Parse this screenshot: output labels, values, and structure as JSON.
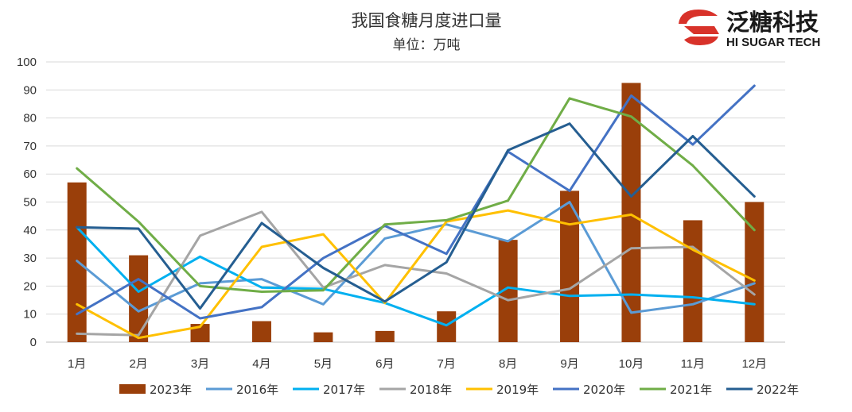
{
  "logo": {
    "name_cn": "泛糖科技",
    "name_en": "HI SUGAR TECH",
    "color_red": "#d8322a"
  },
  "chart_data": {
    "type": "bar+line",
    "title": "我国食糖月度进口量",
    "subtitle": "单位：万吨",
    "categories": [
      "1月",
      "2月",
      "3月",
      "4月",
      "5月",
      "6月",
      "7月",
      "8月",
      "9月",
      "10月",
      "11月",
      "12月"
    ],
    "ylim": [
      0,
      100
    ],
    "yticks": [
      0,
      10,
      20,
      30,
      40,
      50,
      60,
      70,
      80,
      90,
      100
    ],
    "grid": true,
    "legend_position": "bottom",
    "bar_series": {
      "name": "2023年",
      "color": "#9a3f0a",
      "values": [
        57,
        31,
        6.5,
        7.5,
        3.5,
        4,
        11,
        36.5,
        54,
        92.5,
        43.5,
        50
      ]
    },
    "line_series": [
      {
        "name": "2016年",
        "color": "#5b9bd5",
        "values": [
          29,
          11,
          21,
          22.5,
          13.5,
          37,
          42,
          36,
          50,
          10.5,
          13.5,
          21
        ]
      },
      {
        "name": "2017年",
        "color": "#00b0f0",
        "values": [
          41,
          18,
          30.5,
          19.5,
          19,
          14,
          6,
          19.5,
          16.5,
          17,
          16,
          13.5
        ]
      },
      {
        "name": "2018年",
        "color": "#a5a5a5",
        "values": [
          3,
          2.5,
          38,
          46.5,
          19.5,
          27.5,
          24.5,
          15,
          19,
          33.5,
          34,
          17
        ]
      },
      {
        "name": "2019年",
        "color": "#ffc000",
        "values": [
          13.5,
          1.5,
          5.5,
          34,
          38.5,
          14,
          43,
          47,
          42,
          45.5,
          33,
          22
        ]
      },
      {
        "name": "2020年",
        "color": "#4472c4",
        "values": [
          10,
          22.5,
          8.5,
          12.5,
          30,
          41.5,
          31.5,
          68,
          54,
          88,
          70.5,
          91.5
        ]
      },
      {
        "name": "2021年",
        "color": "#70ad47",
        "values": [
          62,
          43,
          20,
          18,
          18.5,
          42,
          43.5,
          50.5,
          87,
          80.5,
          63,
          40
        ]
      },
      {
        "name": "2022年",
        "color": "#255e91",
        "values": [
          41,
          40.5,
          12,
          42.5,
          26.5,
          14.5,
          28.5,
          68.5,
          78,
          52,
          73.5,
          52
        ]
      }
    ],
    "grid_color": "#d9d9d9",
    "axis_color": "#bfbfbf"
  }
}
